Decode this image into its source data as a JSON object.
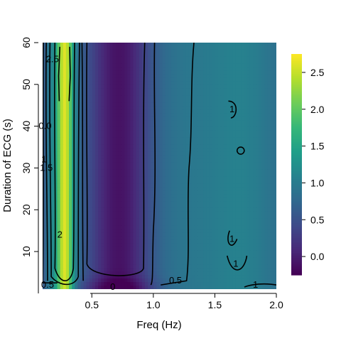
{
  "chart_data": {
    "type": "heatmap",
    "title": "",
    "xlabel": "Freq (Hz)",
    "ylabel": "Duration of ECG (s)",
    "xlim": [
      0.1,
      2.0
    ],
    "ylim": [
      1,
      60
    ],
    "x_ticks": [
      {
        "value": 0.5,
        "label": "0.5"
      },
      {
        "value": 1.0,
        "label": "1.0"
      },
      {
        "value": 1.5,
        "label": "1.5"
      },
      {
        "value": 2.0,
        "label": "2.0"
      }
    ],
    "y_ticks": [
      {
        "value": 10,
        "label": "10"
      },
      {
        "value": 20,
        "label": "20"
      },
      {
        "value": 30,
        "label": "30"
      },
      {
        "value": 40,
        "label": "40"
      },
      {
        "value": 50,
        "label": "50"
      },
      {
        "value": 60,
        "label": "60"
      }
    ],
    "colorbar": {
      "colormap": "viridis",
      "range": [
        -0.25,
        2.75
      ],
      "ticks": [
        {
          "value": 0.0,
          "label": "0.0"
        },
        {
          "value": 0.5,
          "label": "0.5"
        },
        {
          "value": 1.0,
          "label": "1.0"
        },
        {
          "value": 1.5,
          "label": "1.5"
        },
        {
          "value": 2.0,
          "label": "2.0"
        },
        {
          "value": 2.5,
          "label": "2.5"
        }
      ]
    },
    "contour_levels": [
      0,
      0.5,
      1,
      1.5,
      2,
      2.5
    ],
    "contour_labels": [
      {
        "x": 0.18,
        "y": 56,
        "text": "2.5"
      },
      {
        "x": 0.12,
        "y": 40,
        "text": "0.0"
      },
      {
        "x": 0.13,
        "y": 30,
        "text": "1.5"
      },
      {
        "x": 0.11,
        "y": 32,
        "text": "1"
      },
      {
        "x": 0.24,
        "y": 14,
        "text": "2"
      },
      {
        "x": 0.14,
        "y": 2,
        "text": "0.5"
      },
      {
        "x": 0.67,
        "y": 1.5,
        "text": "0"
      },
      {
        "x": 1.18,
        "y": 3,
        "text": "0.5"
      },
      {
        "x": 1.64,
        "y": 44,
        "text": "1"
      },
      {
        "x": 1.64,
        "y": 13,
        "text": "1"
      },
      {
        "x": 1.67,
        "y": 7,
        "text": "1"
      },
      {
        "x": 1.83,
        "y": 2,
        "text": "1"
      }
    ],
    "colors": {
      "viridis": [
        "#440154",
        "#482878",
        "#3E4A89",
        "#31688E",
        "#26828E",
        "#1F9E89",
        "#35B779",
        "#6DCD59",
        "#B4DE2C",
        "#FDE725"
      ],
      "contour": "#000000"
    }
  }
}
